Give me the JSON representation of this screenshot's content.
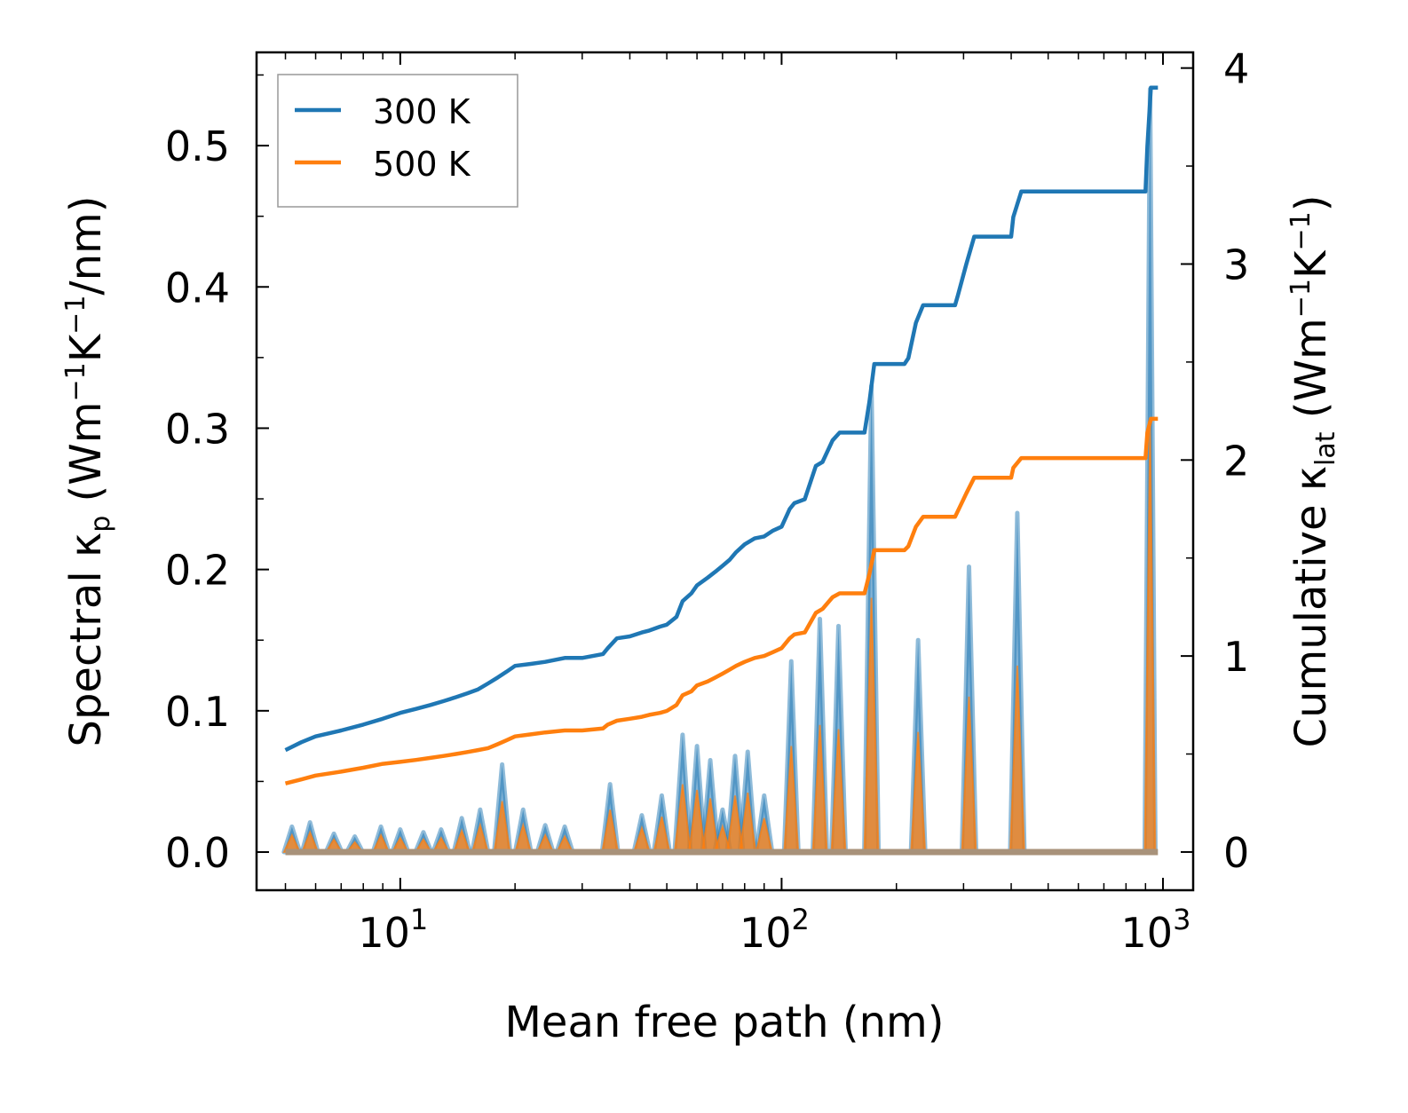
{
  "chart_data": {
    "type": "line",
    "xscale": "log",
    "xlabel": "Mean free path (nm)",
    "ylabel_left": "Spectral κp (Wm−1K−1/nm)",
    "ylabel_right": "Cumulative κlat (Wm−1K−1)",
    "xlim": [
      4.2,
      1200
    ],
    "ylim_left": [
      -0.027,
      0.566
    ],
    "ylim_right": [
      -0.195,
      4.08
    ],
    "x_ticks": [
      {
        "value": 10,
        "base": "10",
        "exp": "1"
      },
      {
        "value": 100,
        "base": "10",
        "exp": "2"
      },
      {
        "value": 1000,
        "base": "10",
        "exp": "3"
      }
    ],
    "y_ticks_left": [
      {
        "value": 0.0,
        "label": "0.0"
      },
      {
        "value": 0.1,
        "label": "0.1"
      },
      {
        "value": 0.2,
        "label": "0.2"
      },
      {
        "value": 0.3,
        "label": "0.3"
      },
      {
        "value": 0.4,
        "label": "0.4"
      },
      {
        "value": 0.5,
        "label": "0.5"
      }
    ],
    "y_ticks_right": [
      {
        "value": 0,
        "label": "0"
      },
      {
        "value": 1,
        "label": "1"
      },
      {
        "value": 2,
        "label": "2"
      },
      {
        "value": 3,
        "label": "3"
      },
      {
        "value": 4,
        "label": "4"
      }
    ],
    "legend": {
      "position": "top-left",
      "entries": [
        {
          "label": "300 K",
          "color": "#1f77b4"
        },
        {
          "label": "500 K",
          "color": "#ff7f0e"
        }
      ]
    },
    "spectral_peaks": [
      {
        "x": 5.2,
        "s300": 0.018,
        "s500": 0.012
      },
      {
        "x": 5.8,
        "s300": 0.021,
        "s500": 0.014
      },
      {
        "x": 6.7,
        "s300": 0.013,
        "s500": 0.009
      },
      {
        "x": 7.6,
        "s300": 0.011,
        "s500": 0.007
      },
      {
        "x": 8.9,
        "s300": 0.018,
        "s500": 0.012
      },
      {
        "x": 10.0,
        "s300": 0.016,
        "s500": 0.01
      },
      {
        "x": 11.5,
        "s300": 0.014,
        "s500": 0.009
      },
      {
        "x": 12.8,
        "s300": 0.016,
        "s500": 0.01
      },
      {
        "x": 14.5,
        "s300": 0.024,
        "s500": 0.015
      },
      {
        "x": 16.2,
        "s300": 0.03,
        "s500": 0.019
      },
      {
        "x": 18.5,
        "s300": 0.062,
        "s500": 0.036
      },
      {
        "x": 21.0,
        "s300": 0.03,
        "s500": 0.019
      },
      {
        "x": 24.0,
        "s300": 0.019,
        "s500": 0.012
      },
      {
        "x": 27.0,
        "s300": 0.018,
        "s500": 0.011
      },
      {
        "x": 35.5,
        "s300": 0.048,
        "s500": 0.03
      },
      {
        "x": 43.0,
        "s300": 0.026,
        "s500": 0.017
      },
      {
        "x": 48.5,
        "s300": 0.04,
        "s500": 0.025
      },
      {
        "x": 55.0,
        "s300": 0.083,
        "s500": 0.048
      },
      {
        "x": 60.0,
        "s300": 0.075,
        "s500": 0.044
      },
      {
        "x": 65.0,
        "s300": 0.065,
        "s500": 0.038
      },
      {
        "x": 70.0,
        "s300": 0.03,
        "s500": 0.018
      },
      {
        "x": 75.5,
        "s300": 0.068,
        "s500": 0.04
      },
      {
        "x": 81.5,
        "s300": 0.071,
        "s500": 0.042
      },
      {
        "x": 90.0,
        "s300": 0.04,
        "s500": 0.024
      },
      {
        "x": 106,
        "s300": 0.135,
        "s500": 0.075
      },
      {
        "x": 126,
        "s300": 0.165,
        "s500": 0.09
      },
      {
        "x": 141,
        "s300": 0.16,
        "s500": 0.087
      },
      {
        "x": 172,
        "s300": 0.33,
        "s500": 0.18
      },
      {
        "x": 228,
        "s300": 0.15,
        "s500": 0.085
      },
      {
        "x": 310,
        "s300": 0.202,
        "s500": 0.11
      },
      {
        "x": 415,
        "s300": 0.24,
        "s500": 0.132
      },
      {
        "x": 925,
        "s300": 0.54,
        "s500": 0.302
      }
    ],
    "series": [
      {
        "name": "300 K",
        "axis": "right",
        "color": "#1f77b4",
        "x": [
          5.0,
          5.5,
          6.0,
          7.0,
          8.0,
          9.0,
          10.0,
          11.0,
          12.0,
          13.0,
          14.0,
          15.0,
          16.0,
          17.0,
          18.0,
          19.0,
          20.0,
          22.0,
          24.0,
          27.0,
          30.0,
          34.0,
          35.0,
          37.0,
          40.0,
          43.0,
          45.0,
          48.0,
          50.0,
          53.0,
          55.0,
          58.0,
          60.0,
          64.0,
          67.0,
          70.0,
          73.0,
          76.0,
          80.0,
          85.0,
          90.0,
          95.0,
          100.0,
          105.0,
          108.0,
          115.0,
          123.0,
          128.0,
          136.0,
          142.0,
          165.0,
          170.0,
          175.0,
          210.0,
          215.0,
          225.0,
          235.0,
          285.0,
          290.0,
          305.0,
          320.0,
          400.0,
          405.0,
          425.0,
          900.0,
          910.0,
          930.0,
          970.0
        ],
        "y": [
          0.52,
          0.56,
          0.59,
          0.62,
          0.65,
          0.68,
          0.71,
          0.73,
          0.75,
          0.77,
          0.79,
          0.81,
          0.83,
          0.86,
          0.89,
          0.92,
          0.95,
          0.96,
          0.97,
          0.99,
          0.99,
          1.01,
          1.04,
          1.09,
          1.1,
          1.12,
          1.13,
          1.15,
          1.16,
          1.2,
          1.28,
          1.32,
          1.36,
          1.4,
          1.43,
          1.46,
          1.49,
          1.53,
          1.57,
          1.6,
          1.61,
          1.64,
          1.66,
          1.75,
          1.78,
          1.8,
          1.97,
          1.99,
          2.1,
          2.14,
          2.14,
          2.3,
          2.49,
          2.49,
          2.52,
          2.7,
          2.79,
          2.79,
          2.84,
          3.0,
          3.14,
          3.14,
          3.24,
          3.37,
          3.37,
          3.6,
          3.9,
          3.9
        ]
      },
      {
        "name": "500 K",
        "axis": "right",
        "color": "#ff7f0e",
        "x": [
          5.0,
          5.5,
          6.0,
          7.0,
          8.0,
          9.0,
          10.0,
          11.0,
          12.0,
          13.0,
          14.0,
          15.0,
          16.0,
          17.0,
          18.0,
          19.0,
          20.0,
          22.0,
          24.0,
          27.0,
          30.0,
          34.0,
          35.0,
          37.0,
          40.0,
          43.0,
          45.0,
          48.0,
          50.0,
          53.0,
          55.0,
          58.0,
          60.0,
          64.0,
          67.0,
          70.0,
          73.0,
          76.0,
          80.0,
          85.0,
          90.0,
          95.0,
          100.0,
          105.0,
          108.0,
          115.0,
          123.0,
          128.0,
          136.0,
          142.0,
          165.0,
          170.0,
          175.0,
          210.0,
          215.0,
          225.0,
          235.0,
          285.0,
          290.0,
          305.0,
          320.0,
          400.0,
          405.0,
          425.0,
          900.0,
          910.0,
          930.0,
          970.0
        ],
        "y": [
          0.35,
          0.37,
          0.39,
          0.41,
          0.43,
          0.45,
          0.46,
          0.47,
          0.48,
          0.49,
          0.5,
          0.51,
          0.52,
          0.53,
          0.55,
          0.57,
          0.59,
          0.6,
          0.61,
          0.62,
          0.62,
          0.63,
          0.65,
          0.67,
          0.68,
          0.69,
          0.7,
          0.71,
          0.72,
          0.75,
          0.8,
          0.82,
          0.85,
          0.87,
          0.89,
          0.91,
          0.93,
          0.95,
          0.97,
          0.99,
          1.0,
          1.02,
          1.04,
          1.09,
          1.11,
          1.12,
          1.22,
          1.24,
          1.3,
          1.32,
          1.32,
          1.42,
          1.54,
          1.54,
          1.56,
          1.66,
          1.71,
          1.71,
          1.74,
          1.83,
          1.91,
          1.91,
          1.96,
          2.01,
          2.01,
          2.14,
          2.21,
          2.21
        ]
      }
    ]
  }
}
